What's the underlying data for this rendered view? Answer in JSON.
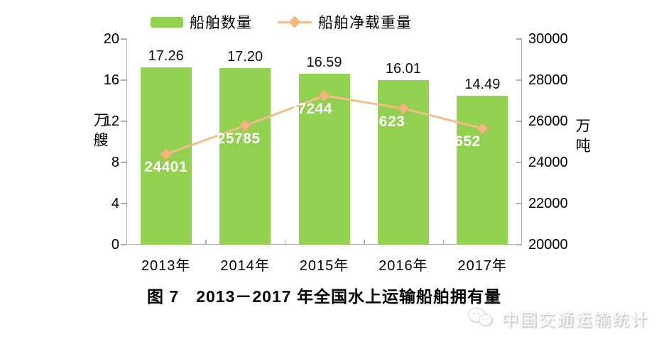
{
  "chart_data": {
    "type": "bar",
    "title": "图 7　2013－2017 年全国水上运输船舶拥有量",
    "categories": [
      "2013年",
      "2014年",
      "2015年",
      "2016年",
      "2017年"
    ],
    "series": [
      {
        "name": "船舶数量",
        "type": "bar",
        "axis": "left",
        "values": [
          17.26,
          17.2,
          16.59,
          16.01,
          14.49
        ],
        "labels": [
          "17.26",
          "17.20",
          "16.59",
          "16.01",
          "14.49"
        ],
        "color": "#92D050"
      },
      {
        "name": "船舶净载重量",
        "type": "line",
        "axis": "right",
        "values": [
          24401,
          25785,
          27244,
          26623,
          25652
        ],
        "labels": [
          "24401",
          "25785",
          "27244",
          "26623",
          "25652"
        ],
        "color": "#F2BE8C",
        "marker_color": "#F0B87E",
        "marker_border_color": "#E6A96B"
      }
    ],
    "left_axis": {
      "label": "万艘",
      "min": 0,
      "max": 20,
      "step": 4,
      "ticks": [
        "0",
        "4",
        "8",
        "12",
        "16",
        "20"
      ]
    },
    "right_axis": {
      "label": "万吨",
      "min": 20000,
      "max": 30000,
      "step": 2000,
      "ticks": [
        "20000",
        "22000",
        "24000",
        "26000",
        "28000",
        "30000"
      ]
    },
    "legend_position": "top",
    "grid": false,
    "axis_color": "#ADADAD"
  },
  "watermark": {
    "text": "中国交通运输统计",
    "logo": "wechat-logo"
  }
}
